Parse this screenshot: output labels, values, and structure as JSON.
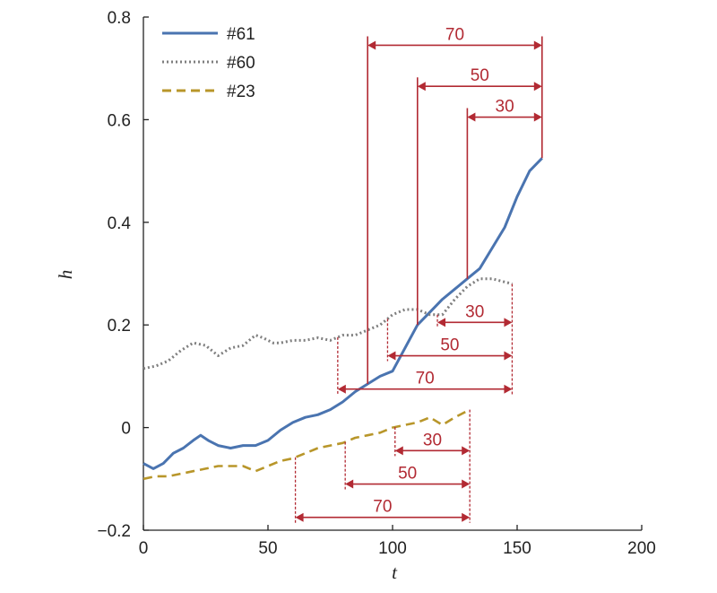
{
  "chart_data": {
    "type": "line",
    "xlabel": "t",
    "ylabel": "h",
    "xlim": [
      0,
      200
    ],
    "ylim": [
      -0.2,
      0.8
    ],
    "xticks": [
      "0",
      "50",
      "100",
      "150",
      "200"
    ],
    "yticks": [
      "−0.2",
      "0",
      "0.2",
      "0.4",
      "0.6",
      "0.8"
    ],
    "legend_position": "top-left",
    "annotation_color": "#b22a33",
    "series": [
      {
        "name": "#61",
        "color": "#4a74b0",
        "style": "solid",
        "x": [
          0,
          4,
          8,
          12,
          16,
          20,
          23,
          26,
          30,
          35,
          40,
          45,
          50,
          55,
          60,
          65,
          70,
          75,
          80,
          85,
          90,
          95,
          100,
          105,
          110,
          115,
          120,
          125,
          130,
          135,
          140,
          145,
          150,
          155,
          160
        ],
        "y": [
          -0.07,
          -0.08,
          -0.07,
          -0.05,
          -0.04,
          -0.025,
          -0.015,
          -0.025,
          -0.035,
          -0.04,
          -0.035,
          -0.035,
          -0.025,
          -0.005,
          0.01,
          0.02,
          0.025,
          0.035,
          0.05,
          0.07,
          0.085,
          0.1,
          0.11,
          0.155,
          0.2,
          0.225,
          0.25,
          0.27,
          0.29,
          0.31,
          0.35,
          0.39,
          0.45,
          0.5,
          0.525
        ]
      },
      {
        "name": "#60",
        "color": "#7f7f7f",
        "style": "dotted",
        "x": [
          0,
          5,
          10,
          15,
          20,
          25,
          30,
          35,
          40,
          45,
          48,
          52,
          55,
          60,
          65,
          70,
          75,
          80,
          85,
          90,
          95,
          100,
          105,
          110,
          115,
          120,
          125,
          130,
          135,
          140,
          148
        ],
        "y": [
          0.115,
          0.12,
          0.13,
          0.15,
          0.165,
          0.16,
          0.14,
          0.155,
          0.16,
          0.18,
          0.175,
          0.165,
          0.165,
          0.17,
          0.17,
          0.175,
          0.17,
          0.18,
          0.18,
          0.19,
          0.2,
          0.22,
          0.23,
          0.23,
          0.22,
          0.22,
          0.25,
          0.275,
          0.29,
          0.29,
          0.28
        ]
      },
      {
        "name": "#23",
        "color": "#b8962a",
        "style": "dashed",
        "x": [
          0,
          5,
          10,
          15,
          20,
          25,
          30,
          35,
          40,
          45,
          50,
          55,
          60,
          65,
          70,
          75,
          80,
          85,
          90,
          95,
          100,
          105,
          110,
          115,
          120,
          125,
          131
        ],
        "y": [
          -0.1,
          -0.095,
          -0.095,
          -0.09,
          -0.085,
          -0.08,
          -0.075,
          -0.075,
          -0.075,
          -0.085,
          -0.075,
          -0.065,
          -0.06,
          -0.05,
          -0.04,
          -0.035,
          -0.03,
          -0.02,
          -0.015,
          -0.01,
          0.0,
          0.005,
          0.01,
          0.02,
          0.005,
          0.02,
          0.035
        ]
      }
    ],
    "annotations": [
      {
        "anchor_series": "#61",
        "end_x": 160,
        "durations": [
          {
            "label": "70",
            "start_x": 90,
            "y_arrow": 0.745
          },
          {
            "label": "50",
            "start_x": 110,
            "y_arrow": 0.665
          },
          {
            "label": "30",
            "start_x": 130,
            "y_arrow": 0.605
          }
        ]
      },
      {
        "anchor_series": "#60",
        "end_x": 148,
        "durations": [
          {
            "label": "30",
            "start_x": 118,
            "y_arrow": 0.205
          },
          {
            "label": "50",
            "start_x": 98,
            "y_arrow": 0.14
          },
          {
            "label": "70",
            "start_x": 78,
            "y_arrow": 0.075
          }
        ]
      },
      {
        "anchor_series": "#23",
        "end_x": 131,
        "durations": [
          {
            "label": "30",
            "start_x": 101,
            "y_arrow": -0.045
          },
          {
            "label": "50",
            "start_x": 81,
            "y_arrow": -0.11
          },
          {
            "label": "70",
            "start_x": 61,
            "y_arrow": -0.175
          }
        ]
      }
    ]
  }
}
